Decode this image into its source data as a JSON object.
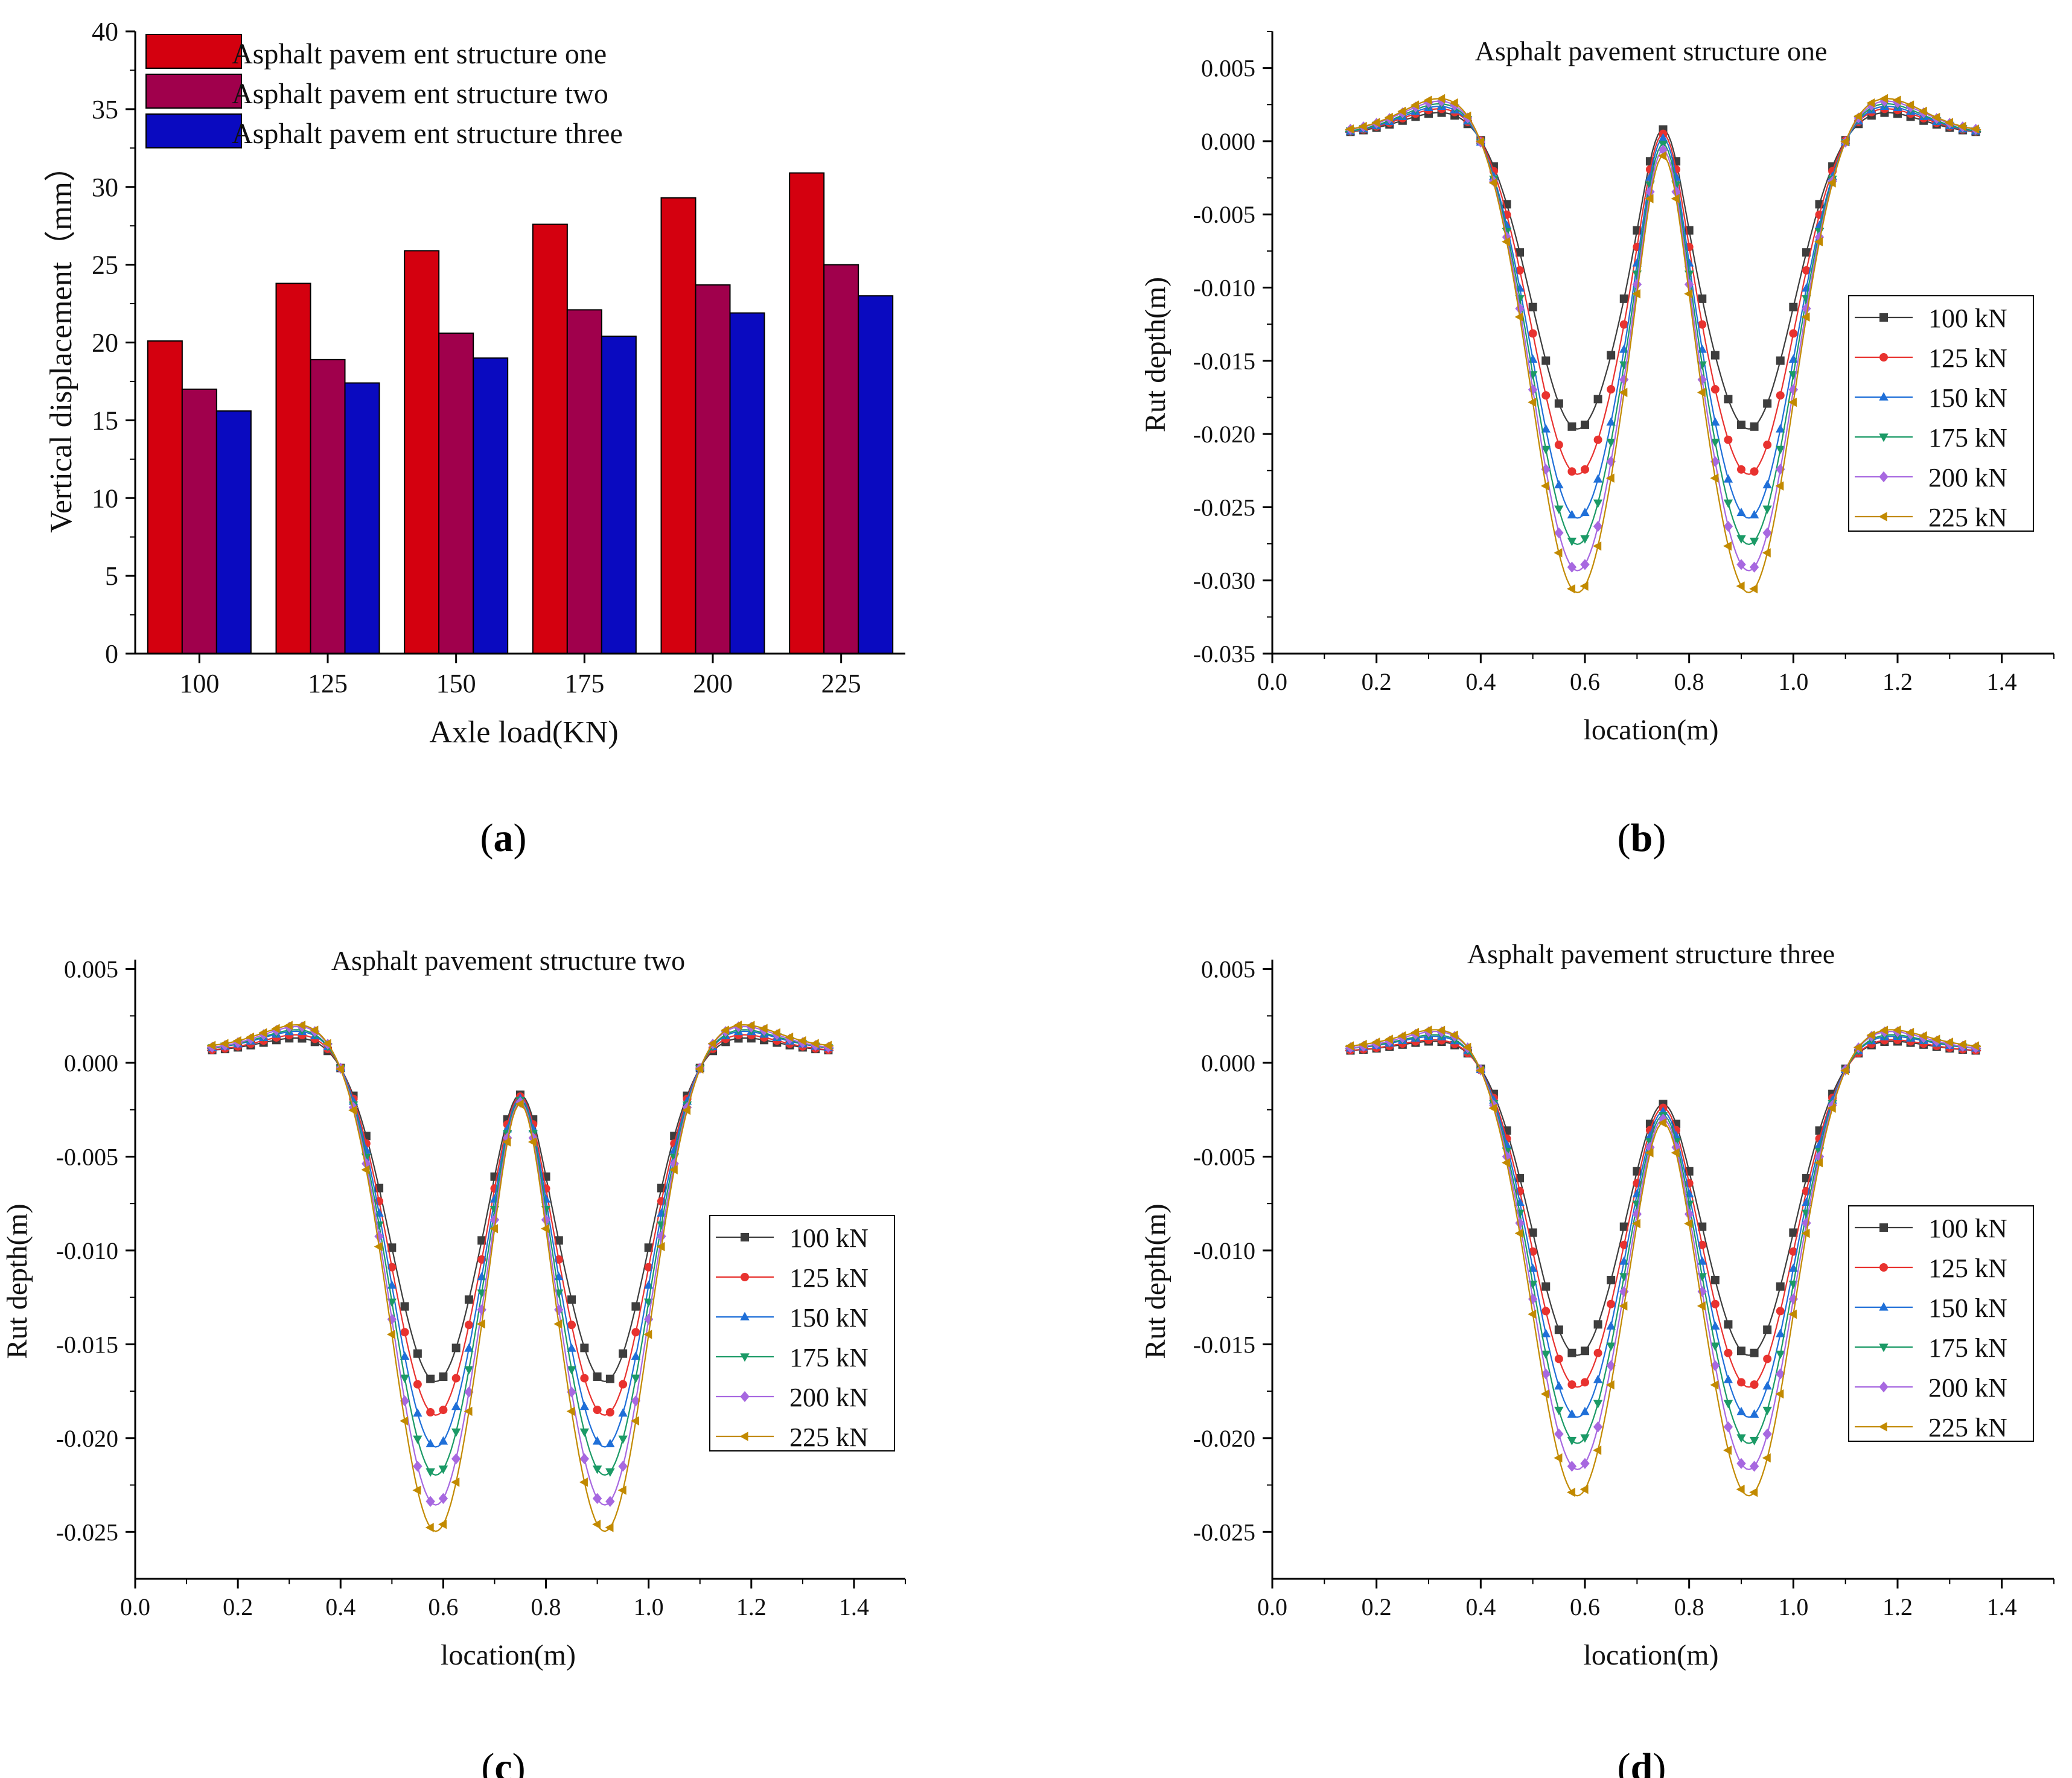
{
  "figure": {
    "panel_labels": [
      "a",
      "b",
      "c",
      "d"
    ]
  },
  "chart_data": [
    {
      "type": "bar",
      "panel": "a",
      "title": "",
      "xlabel": "Axle load(KN)",
      "ylabel": "Vertical displacement（mm）",
      "categories": [
        "100",
        "125",
        "150",
        "175",
        "200",
        "225"
      ],
      "ylim": [
        0,
        40
      ],
      "yticks": [
        "0",
        "5",
        "10",
        "15",
        "20",
        "25",
        "30",
        "35",
        "40"
      ],
      "legend_position": "top-left",
      "grid": false,
      "series": [
        {
          "name": "Asphalt pavem ent structure one",
          "color": "#d4000f",
          "values": [
            20.1,
            23.8,
            25.9,
            27.6,
            29.3,
            30.9
          ]
        },
        {
          "name": "Asphalt pavem ent structure two",
          "color": "#a0004c",
          "values": [
            17.0,
            18.9,
            20.6,
            22.1,
            23.7,
            25.0
          ]
        },
        {
          "name": "Asphalt pavem ent structure three",
          "color": "#0a0ac0",
          "values": [
            15.6,
            17.4,
            19.0,
            20.4,
            21.9,
            23.0
          ]
        }
      ]
    },
    {
      "type": "line",
      "panel": "b",
      "title": "Asphalt pavement structure one",
      "xlabel": "location(m)",
      "ylabel": "Rut depth(m)",
      "xlim": [
        0.0,
        1.5
      ],
      "ylim": [
        -0.035,
        0.0075
      ],
      "xticks": [
        "0.0",
        "0.2",
        "0.4",
        "0.6",
        "0.8",
        "1.0",
        "1.2",
        "1.4"
      ],
      "yticks": [
        "-0.035",
        "-0.030",
        "-0.025",
        "-0.020",
        "-0.015",
        "-0.010",
        "-0.005",
        "0.000",
        "0.005"
      ],
      "legend_position": "right",
      "grid": false,
      "series": [
        {
          "name": "100 kN",
          "color": "#3d3d3d",
          "marker": "square",
          "params": {
            "edge": 0.0005,
            "peak": 0.0022,
            "min": -0.0197,
            "center": 0.0008
          }
        },
        {
          "name": "125 kN",
          "color": "#e8322f",
          "marker": "circle",
          "params": {
            "edge": 0.0005,
            "peak": 0.0025,
            "min": -0.0228,
            "center": 0.0005
          }
        },
        {
          "name": "150 kN",
          "color": "#1f6fd8",
          "marker": "triangle-up",
          "params": {
            "edge": 0.0005,
            "peak": 0.0027,
            "min": -0.0258,
            "center": 0.0002
          }
        },
        {
          "name": "175 kN",
          "color": "#1b9a66",
          "marker": "triangle-down",
          "params": {
            "edge": 0.0005,
            "peak": 0.0029,
            "min": -0.0276,
            "center": -0.0002
          }
        },
        {
          "name": "200 kN",
          "color": "#a768e0",
          "marker": "diamond",
          "params": {
            "edge": 0.0006,
            "peak": 0.0031,
            "min": -0.0294,
            "center": -0.0006
          }
        },
        {
          "name": "225 kN",
          "color": "#c28a00",
          "marker": "triangle-left",
          "params": {
            "edge": 0.0006,
            "peak": 0.0033,
            "min": -0.0309,
            "center": -0.001
          }
        }
      ]
    },
    {
      "type": "line",
      "panel": "c",
      "title": "Asphalt pavement structure two",
      "xlabel": "location(m)",
      "ylabel": "Rut depth(m)",
      "xlim": [
        0.0,
        1.5
      ],
      "ylim": [
        -0.0275,
        0.0055
      ],
      "xticks": [
        "0.0",
        "0.2",
        "0.4",
        "0.6",
        "0.8",
        "1.0",
        "1.2",
        "1.4"
      ],
      "yticks": [
        "-0.025",
        "-0.020",
        "-0.015",
        "-0.010",
        "-0.005",
        "0.000",
        "0.005"
      ],
      "legend_position": "right",
      "grid": false,
      "series": [
        {
          "name": "100 kN",
          "color": "#3d3d3d",
          "marker": "square",
          "params": {
            "edge": 0.0006,
            "peak": 0.0015,
            "min": -0.017,
            "center": -0.0017
          }
        },
        {
          "name": "125 kN",
          "color": "#e8322f",
          "marker": "circle",
          "params": {
            "edge": 0.0006,
            "peak": 0.0017,
            "min": -0.0188,
            "center": -0.0018
          }
        },
        {
          "name": "150 kN",
          "color": "#1f6fd8",
          "marker": "triangle-up",
          "params": {
            "edge": 0.0007,
            "peak": 0.0019,
            "min": -0.0205,
            "center": -0.0019
          }
        },
        {
          "name": "175 kN",
          "color": "#1b9a66",
          "marker": "triangle-down",
          "params": {
            "edge": 0.0007,
            "peak": 0.002,
            "min": -0.022,
            "center": -0.002
          }
        },
        {
          "name": "200 kN",
          "color": "#a768e0",
          "marker": "diamond",
          "params": {
            "edge": 0.0007,
            "peak": 0.0022,
            "min": -0.0236,
            "center": -0.0021
          }
        },
        {
          "name": "225 kN",
          "color": "#c28a00",
          "marker": "triangle-left",
          "params": {
            "edge": 0.0008,
            "peak": 0.0023,
            "min": -0.025,
            "center": -0.0022
          }
        }
      ]
    },
    {
      "type": "line",
      "panel": "d",
      "title": "Asphalt pavement structure three",
      "xlabel": "location(m)",
      "ylabel": "Rut depth(m)",
      "xlim": [
        0.0,
        1.5
      ],
      "ylim": [
        -0.0275,
        0.0055
      ],
      "xticks": [
        "0.0",
        "0.2",
        "0.4",
        "0.6",
        "0.8",
        "1.0",
        "1.2",
        "1.4"
      ],
      "yticks": [
        "-0.025",
        "-0.020",
        "-0.015",
        "-0.010",
        "-0.005",
        "0.000",
        "0.005"
      ],
      "legend_position": "right",
      "grid": false,
      "series": [
        {
          "name": "100 kN",
          "color": "#3d3d3d",
          "marker": "square",
          "params": {
            "edge": 0.0006,
            "peak": 0.0013,
            "min": -0.0156,
            "center": -0.0022
          }
        },
        {
          "name": "125 kN",
          "color": "#e8322f",
          "marker": "circle",
          "params": {
            "edge": 0.0006,
            "peak": 0.0014,
            "min": -0.0173,
            "center": -0.0024
          }
        },
        {
          "name": "150 kN",
          "color": "#1f6fd8",
          "marker": "triangle-up",
          "params": {
            "edge": 0.0007,
            "peak": 0.0016,
            "min": -0.0189,
            "center": -0.0026
          }
        },
        {
          "name": "175 kN",
          "color": "#1b9a66",
          "marker": "triangle-down",
          "params": {
            "edge": 0.0007,
            "peak": 0.0017,
            "min": -0.0203,
            "center": -0.0028
          }
        },
        {
          "name": "200 kN",
          "color": "#a768e0",
          "marker": "diamond",
          "params": {
            "edge": 0.0007,
            "peak": 0.0019,
            "min": -0.0217,
            "center": -0.003
          }
        },
        {
          "name": "225 kN",
          "color": "#c28a00",
          "marker": "triangle-left",
          "params": {
            "edge": 0.0008,
            "peak": 0.002,
            "min": -0.0231,
            "center": -0.0032
          }
        }
      ]
    }
  ]
}
